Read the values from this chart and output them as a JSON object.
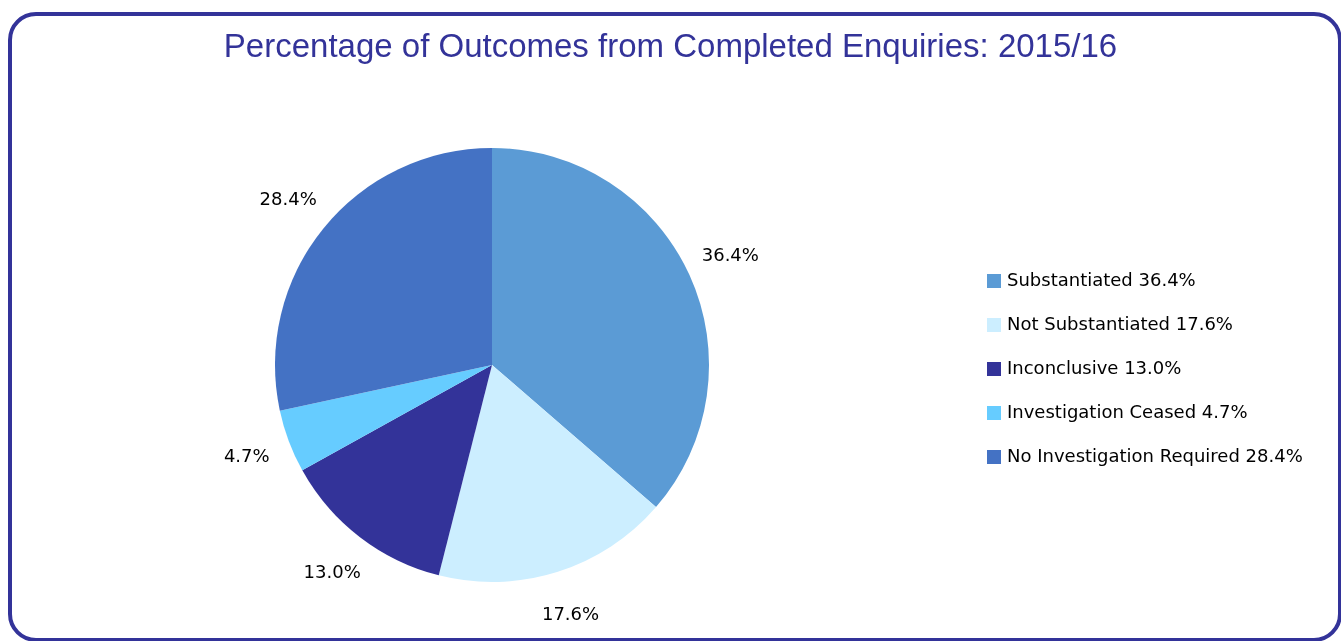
{
  "chart_data": {
    "type": "pie",
    "title": "Percentage of Outcomes from Completed Enquiries: 2015/16",
    "categories": [
      "Substantiated 36.4%",
      "Not Substantiated 17.6%",
      "Inconclusive 13.0%",
      "Investigation Ceased 4.7%",
      "No Investigation Required 28.4%"
    ],
    "values": [
      36.4,
      17.6,
      13.0,
      4.7,
      28.4
    ],
    "value_labels": [
      "36.4%",
      "17.6%",
      "13.0%",
      "4.7%",
      "28.4%"
    ],
    "colors": [
      "#5b9bd5",
      "#cceeff",
      "#333399",
      "#66ccff",
      "#4472c4"
    ],
    "legend": "right"
  }
}
